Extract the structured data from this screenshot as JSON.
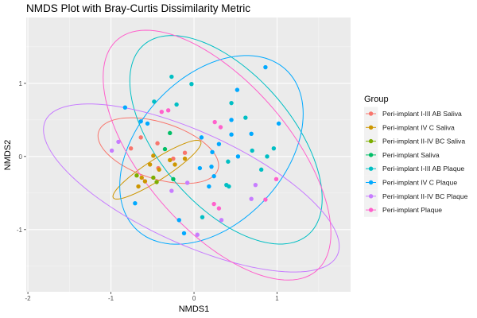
{
  "chart_data": {
    "type": "scatter",
    "title": "NMDS Plot with Bray-Curtis Dissimilarity Metric",
    "xlabel": "NMDS1",
    "ylabel": "NMDS2",
    "xlim": [
      -2.02,
      1.885
    ],
    "ylim": [
      -1.85,
      1.9
    ],
    "x_ticks": [
      -2,
      -1,
      0,
      1
    ],
    "y_ticks": [
      -1,
      0,
      1
    ],
    "x_tick_labels": [
      "-2",
      "-1",
      "0",
      "1"
    ],
    "y_tick_labels": [
      "-1",
      "0",
      "1"
    ],
    "grid": true,
    "legend": {
      "title": "Group",
      "position": "right"
    },
    "series": [
      {
        "name": "Peri-implant I-III AB Saliva",
        "color": "#F8766D",
        "points": [
          [
            -0.64,
            0.26
          ],
          [
            -0.44,
            0.18
          ],
          [
            -0.76,
            0.11
          ],
          [
            -0.11,
            0.05
          ],
          [
            -0.25,
            -0.03
          ],
          [
            -0.43,
            -0.16
          ]
        ],
        "ellipse": {
          "center": [
            -0.43,
            0.08
          ],
          "sxx": 0.527,
          "syy": 0.2016,
          "sxy": -0.147
        }
      },
      {
        "name": "Peri-implant IV C Saliva",
        "color": "#CD9600",
        "points": [
          [
            -0.49,
            0.01
          ],
          [
            -0.53,
            -0.11
          ],
          [
            -0.29,
            -0.05
          ],
          [
            -0.23,
            -0.11
          ],
          [
            -0.11,
            -0.03
          ],
          [
            -0.42,
            -0.18
          ],
          [
            -0.63,
            -0.29
          ],
          [
            -0.59,
            -0.34
          ],
          [
            -0.67,
            -0.41
          ]
        ],
        "ellipse": {
          "center": [
            -0.446,
            -0.181
          ],
          "sxx": 0.281,
          "syy": 0.1616,
          "sxy": 0.194
        }
      },
      {
        "name": "Peri-implant II-IV BC Saliva",
        "color": "#7CAE00",
        "points": [
          [
            -0.69,
            -0.26
          ],
          [
            -0.49,
            -0.29
          ],
          [
            -0.45,
            -0.35
          ]
        ],
        "ellipse": null
      },
      {
        "name": "Peri-implant Saliva",
        "color": "#00BE67",
        "points": [
          [
            -0.29,
            0.32
          ],
          [
            -0.35,
            0.1
          ],
          [
            -0.25,
            -0.31
          ]
        ],
        "ellipse": null
      },
      {
        "name": "Peri-implant I-III AB Plaque",
        "color": "#00BFC4",
        "points": [
          [
            -0.27,
            1.09
          ],
          [
            -0.03,
            0.99
          ],
          [
            -0.48,
            0.75
          ],
          [
            -0.21,
            0.71
          ],
          [
            0.45,
            0.73
          ],
          [
            0.62,
            0.53
          ],
          [
            0.7,
            0.08
          ],
          [
            0.96,
            0.11
          ],
          [
            0.88,
            0.0
          ],
          [
            0.41,
            -0.07
          ],
          [
            0.81,
            -0.18
          ],
          [
            0.39,
            -0.39
          ],
          [
            0.42,
            -0.41
          ],
          [
            0.1,
            -0.83
          ]
        ],
        "ellipse": {
          "center": [
            0.385,
            0.228
          ],
          "sxx": 1.341,
          "syy": 2.033,
          "sxy": -0.931
        }
      },
      {
        "name": "Peri-implant IV C Plaque",
        "color": "#00A9FF",
        "points": [
          [
            0.86,
            1.22
          ],
          [
            0.52,
            0.91
          ],
          [
            -0.83,
            0.67
          ],
          [
            0.45,
            0.5
          ],
          [
            -0.64,
            0.48
          ],
          [
            -0.56,
            0.45
          ],
          [
            1.02,
            0.45
          ],
          [
            0.45,
            0.3
          ],
          [
            0.69,
            0.31
          ],
          [
            0.09,
            0.26
          ],
          [
            0.3,
            0.17
          ],
          [
            0.22,
            0.06
          ],
          [
            0.53,
            0.0
          ],
          [
            0.07,
            -0.16
          ],
          [
            0.21,
            -0.14
          ],
          [
            0.24,
            -0.27
          ],
          [
            0.18,
            -0.41
          ],
          [
            -0.71,
            -0.64
          ],
          [
            -0.18,
            -0.87
          ],
          [
            -0.12,
            -1.05
          ]
        ],
        "ellipse": {
          "center": [
            0.21,
            0.09
          ],
          "sxx": 1.219,
          "syy": 1.664,
          "sxy": 0.544
        }
      },
      {
        "name": "Peri-implant II-IV BC Plaque",
        "color": "#C77CFF",
        "points": [
          [
            -0.91,
            0.2
          ],
          [
            -0.99,
            0.08
          ],
          [
            -0.08,
            -0.36
          ],
          [
            -0.27,
            -0.47
          ],
          [
            0.74,
            -0.39
          ],
          [
            0.69,
            -0.58
          ],
          [
            0.33,
            -0.87
          ],
          [
            0.04,
            -1.07
          ]
        ],
        "ellipse": {
          "center": [
            -0.032,
            -0.431
          ],
          "sxx": 3.17,
          "syy": 1.32,
          "sxy": -1.419
        }
      },
      {
        "name": "Peri-implant Plaque",
        "color": "#FF61CC",
        "points": [
          [
            -0.39,
            0.61
          ],
          [
            -0.31,
            0.63
          ],
          [
            0.25,
            0.47
          ],
          [
            0.32,
            0.4
          ],
          [
            0.99,
            -0.31
          ],
          [
            0.86,
            -0.59
          ],
          [
            0.24,
            -0.65
          ],
          [
            0.3,
            -0.71
          ]
        ],
        "ellipse": {
          "center": [
            0.277,
            0.018
          ],
          "sxx": 1.88,
          "syy": 2.918,
          "sxy": -1.46
        }
      }
    ]
  }
}
